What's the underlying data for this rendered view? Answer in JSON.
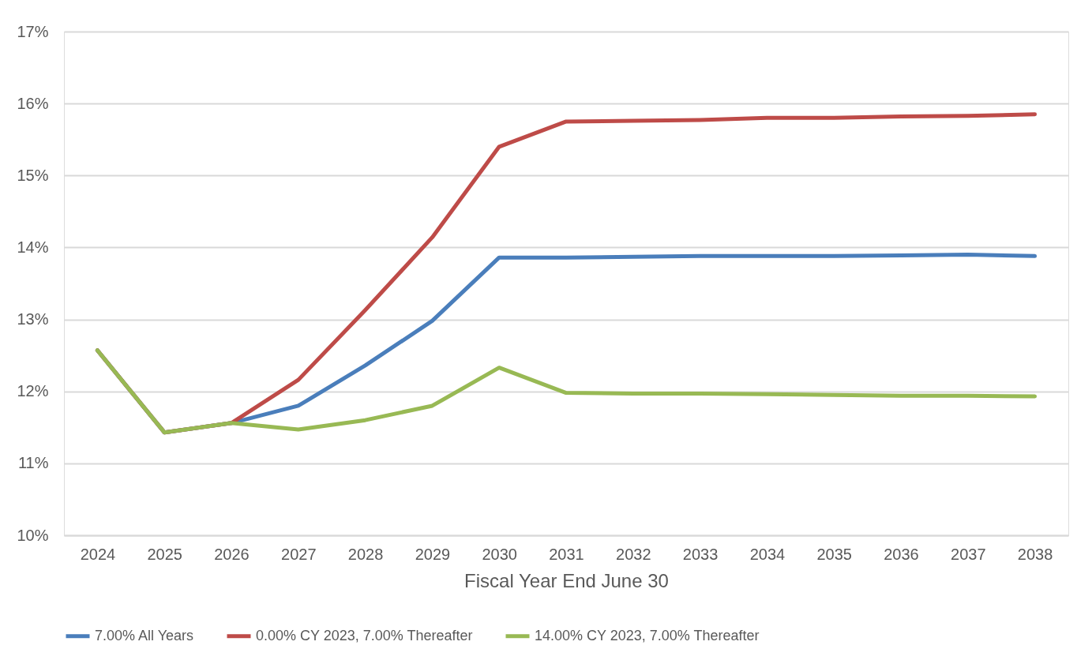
{
  "chart_data": {
    "type": "line",
    "xlabel": "Fiscal Year End June 30",
    "categories": [
      "2024",
      "2025",
      "2026",
      "2027",
      "2028",
      "2029",
      "2030",
      "2031",
      "2032",
      "2033",
      "2034",
      "2035",
      "2036",
      "2037",
      "2038"
    ],
    "series": [
      {
        "name": "7.00% All Years",
        "color": "#4a7ebb",
        "values": [
          12.57,
          11.43,
          11.56,
          11.8,
          12.36,
          12.98,
          13.86,
          13.86,
          13.87,
          13.88,
          13.88,
          13.88,
          13.89,
          13.9,
          13.88
        ]
      },
      {
        "name": "0.00% CY 2023, 7.00% Thereafter",
        "color": "#be4b48",
        "values": [
          12.57,
          11.43,
          11.56,
          12.16,
          13.13,
          14.14,
          15.4,
          15.75,
          15.76,
          15.77,
          15.8,
          15.8,
          15.82,
          15.83,
          15.85
        ]
      },
      {
        "name": "14.00% CY 2023, 7.00% Thereafter",
        "color": "#98b954",
        "values": [
          12.57,
          11.43,
          11.56,
          11.47,
          11.6,
          11.8,
          12.33,
          11.98,
          11.97,
          11.97,
          11.96,
          11.95,
          11.94,
          11.94,
          11.93
        ]
      }
    ],
    "ylim": [
      10,
      17
    ],
    "yticks": [
      {
        "value": 10,
        "label": "10%"
      },
      {
        "value": 11,
        "label": "11%"
      },
      {
        "value": 12,
        "label": "12%"
      },
      {
        "value": 13,
        "label": "13%"
      },
      {
        "value": 14,
        "label": "14%"
      },
      {
        "value": 15,
        "label": "15%"
      },
      {
        "value": 16,
        "label": "16%"
      },
      {
        "value": 17,
        "label": "17%"
      }
    ],
    "grid": "y",
    "legend": "bottom",
    "marker": "none",
    "line_style": "solid"
  }
}
